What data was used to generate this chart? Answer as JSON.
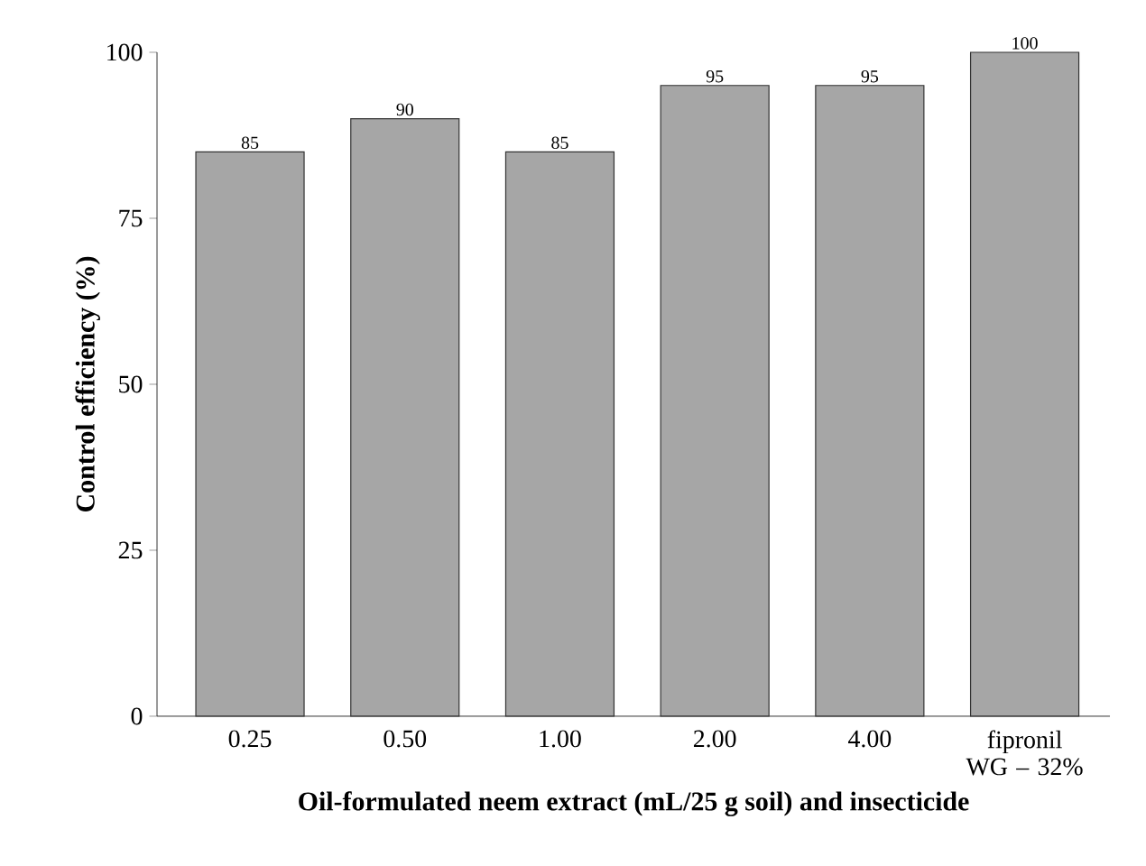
{
  "chart_data": {
    "type": "bar",
    "xlabel": "Oil-formulated neem extract  (mL/25 g soil) and insecticide",
    "ylabel": "Control efficiency (%)",
    "categories": [
      "0.25",
      "0.50",
      "1.00",
      "2.00",
      "4.00",
      "fipronil WG – 32%"
    ],
    "values": [
      85,
      90,
      85,
      95,
      95,
      100
    ],
    "color": "#a6a6a6",
    "ylim": [
      0,
      100
    ],
    "yticks": [
      0,
      25,
      50,
      75,
      100
    ],
    "data_labels": true
  }
}
